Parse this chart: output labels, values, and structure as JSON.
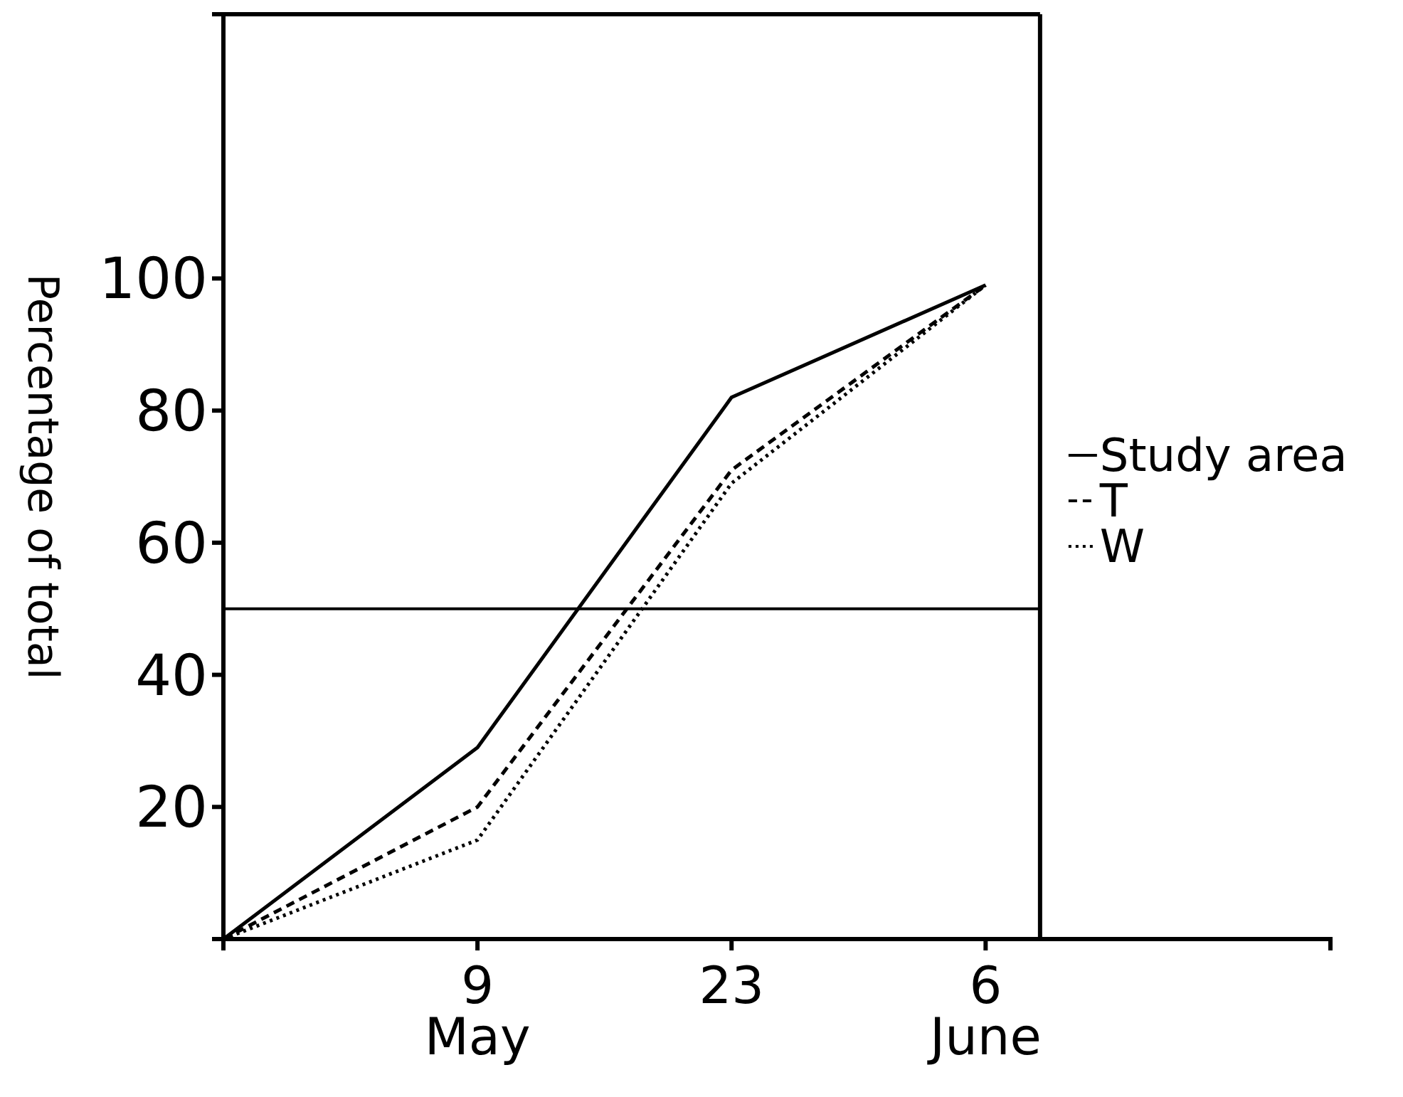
{
  "chart_data": {
    "type": "line",
    "ylabel": "Percentage of total",
    "x": [
      "--04-25",
      "--05-09",
      "--05-23",
      "--06-06"
    ],
    "xlim": [
      "--04-25",
      "--06-25"
    ],
    "xticks": [
      {
        "value": "--05-09",
        "label": "9\nMay"
      },
      {
        "value": "--05-23",
        "label": "23"
      },
      {
        "value": "--06-06",
        "label": "6\nJune"
      }
    ],
    "ylim": [
      0,
      140
    ],
    "yticks": [
      20,
      40,
      60,
      80,
      100
    ],
    "series": [
      {
        "name": "Study area",
        "color": "#000000",
        "line_style": "solid",
        "values": [
          0,
          29,
          82,
          99
        ]
      },
      {
        "name": "T",
        "color": "#000000",
        "line_style": "dashed",
        "values": [
          0,
          20,
          71,
          99
        ]
      },
      {
        "name": "W",
        "color": "#000000",
        "line_style": "dotted",
        "values": [
          0,
          15,
          69,
          99
        ]
      }
    ],
    "ref_lines": [
      {
        "axis": "y",
        "value": 50,
        "color": "#000000"
      },
      {
        "axis": "x",
        "value": "--06-09",
        "color": "#000000"
      }
    ],
    "legend": "right",
    "grid": false,
    "marker": "none"
  }
}
